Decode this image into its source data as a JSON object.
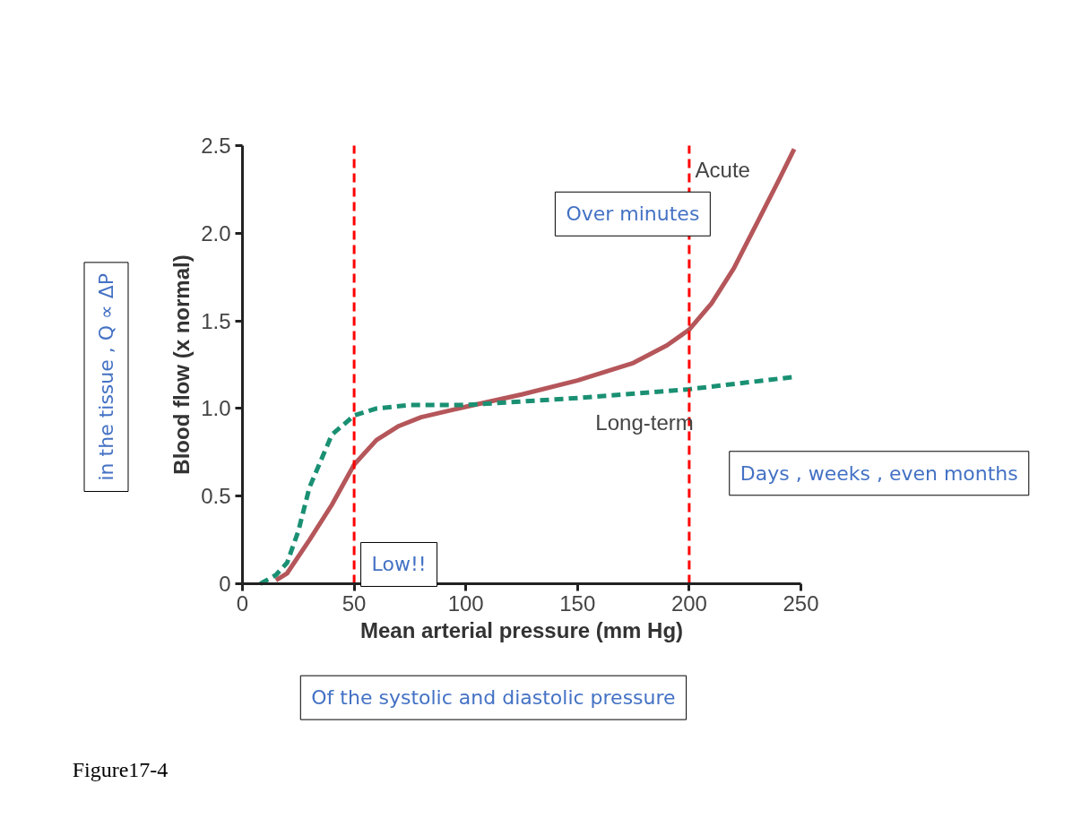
{
  "chart_data": {
    "type": "line",
    "xlabel": "Mean arterial pressure (mm Hg)",
    "ylabel": "Blood flow (x normal)",
    "xlim": [
      0,
      250
    ],
    "ylim": [
      0,
      2.5
    ],
    "xticks": [
      0,
      50,
      100,
      150,
      200,
      250
    ],
    "yticks": [
      0,
      {
        "value": 0.5,
        "label": "0.5"
      },
      {
        "value": 1,
        "label": "1.0"
      },
      {
        "value": 1.5,
        "label": "1.5"
      },
      {
        "value": 2,
        "label": "2.0"
      },
      {
        "value": 2.5,
        "label": "2.5"
      }
    ],
    "legend": false,
    "series": [
      {
        "name": "Acute",
        "color": "#b5565a",
        "line_style": "solid",
        "x": [
          15,
          20,
          30,
          40,
          50,
          60,
          70,
          80,
          100,
          125,
          150,
          175,
          190,
          200,
          210,
          220,
          230,
          240,
          247
        ],
        "values": [
          0.02,
          0.06,
          0.25,
          0.45,
          0.68,
          0.82,
          0.9,
          0.95,
          1.01,
          1.08,
          1.16,
          1.26,
          1.36,
          1.45,
          1.6,
          1.8,
          2.05,
          2.3,
          2.48
        ]
      },
      {
        "name": "Long-term",
        "color": "#1a9073",
        "line_style": "dashed",
        "x": [
          8,
          15,
          20,
          25,
          30,
          40,
          50,
          60,
          75,
          100,
          150,
          200,
          247
        ],
        "values": [
          0.0,
          0.05,
          0.12,
          0.3,
          0.55,
          0.85,
          0.96,
          1.0,
          1.02,
          1.02,
          1.06,
          1.11,
          1.18
        ]
      }
    ],
    "ref_lines": [
      {
        "axis": "x",
        "value": 50,
        "color": "#ff0000",
        "line_style": "dashed"
      },
      {
        "axis": "x",
        "value": 200,
        "color": "#ff0000",
        "line_style": "dashed"
      }
    ],
    "annotations": [
      "Over minutes",
      "Days , weeks , even months",
      "Low!!",
      "Of the systolic and diastolic pressure",
      "in the tissue , Q ∝ ΔP",
      "Figure17-4"
    ]
  }
}
